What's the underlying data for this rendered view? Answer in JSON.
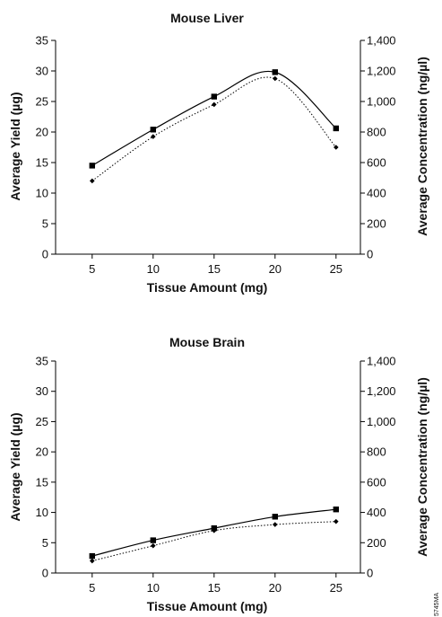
{
  "figure_code": "5745MA",
  "chart_data": [
    {
      "type": "line",
      "title": "Mouse Liver",
      "xlabel": "Tissue Amount (mg)",
      "ylabel": "Average Yield (µg)",
      "y2label": "Average Concentration (ng/µl)",
      "categories": [
        "5",
        "10",
        "15",
        "20",
        "25"
      ],
      "x": [
        5,
        10,
        15,
        20,
        25
      ],
      "xlim": [
        2,
        27
      ],
      "ylim": [
        0,
        35
      ],
      "y2lim": [
        0,
        1400
      ],
      "yticks": [
        "0",
        "5",
        "10",
        "15",
        "20",
        "25",
        "30",
        "35"
      ],
      "y2ticks": [
        "0",
        "200",
        "400",
        "600",
        "800",
        "1,000",
        "1,200",
        "1,400"
      ],
      "grid": false,
      "series": [
        {
          "values": [
            14.5,
            20.4,
            25.8,
            29.8,
            20.6
          ],
          "marker": "square",
          "line": "solid",
          "axis": "left"
        },
        {
          "values": [
            480,
            770,
            980,
            1150,
            700
          ],
          "marker": "diamond",
          "line": "dotted",
          "axis": "right"
        }
      ]
    },
    {
      "type": "line",
      "title": "Mouse Brain",
      "xlabel": "Tissue Amount (mg)",
      "ylabel": "Average Yield (µg)",
      "y2label": "Average Concentration (ng/µl)",
      "categories": [
        "5",
        "10",
        "15",
        "20",
        "25"
      ],
      "x": [
        5,
        10,
        15,
        20,
        25
      ],
      "xlim": [
        2,
        27
      ],
      "ylim": [
        0,
        35
      ],
      "y2lim": [
        0,
        1400
      ],
      "yticks": [
        "0",
        "5",
        "10",
        "15",
        "20",
        "25",
        "30",
        "35"
      ],
      "y2ticks": [
        "0",
        "200",
        "400",
        "600",
        "800",
        "1,000",
        "1,200",
        "1,400"
      ],
      "grid": false,
      "series": [
        {
          "values": [
            2.8,
            5.4,
            7.4,
            9.3,
            10.5
          ],
          "marker": "square",
          "line": "solid",
          "axis": "left"
        },
        {
          "values": [
            80,
            180,
            280,
            320,
            340
          ],
          "marker": "diamond",
          "line": "dotted",
          "axis": "right"
        }
      ]
    }
  ]
}
